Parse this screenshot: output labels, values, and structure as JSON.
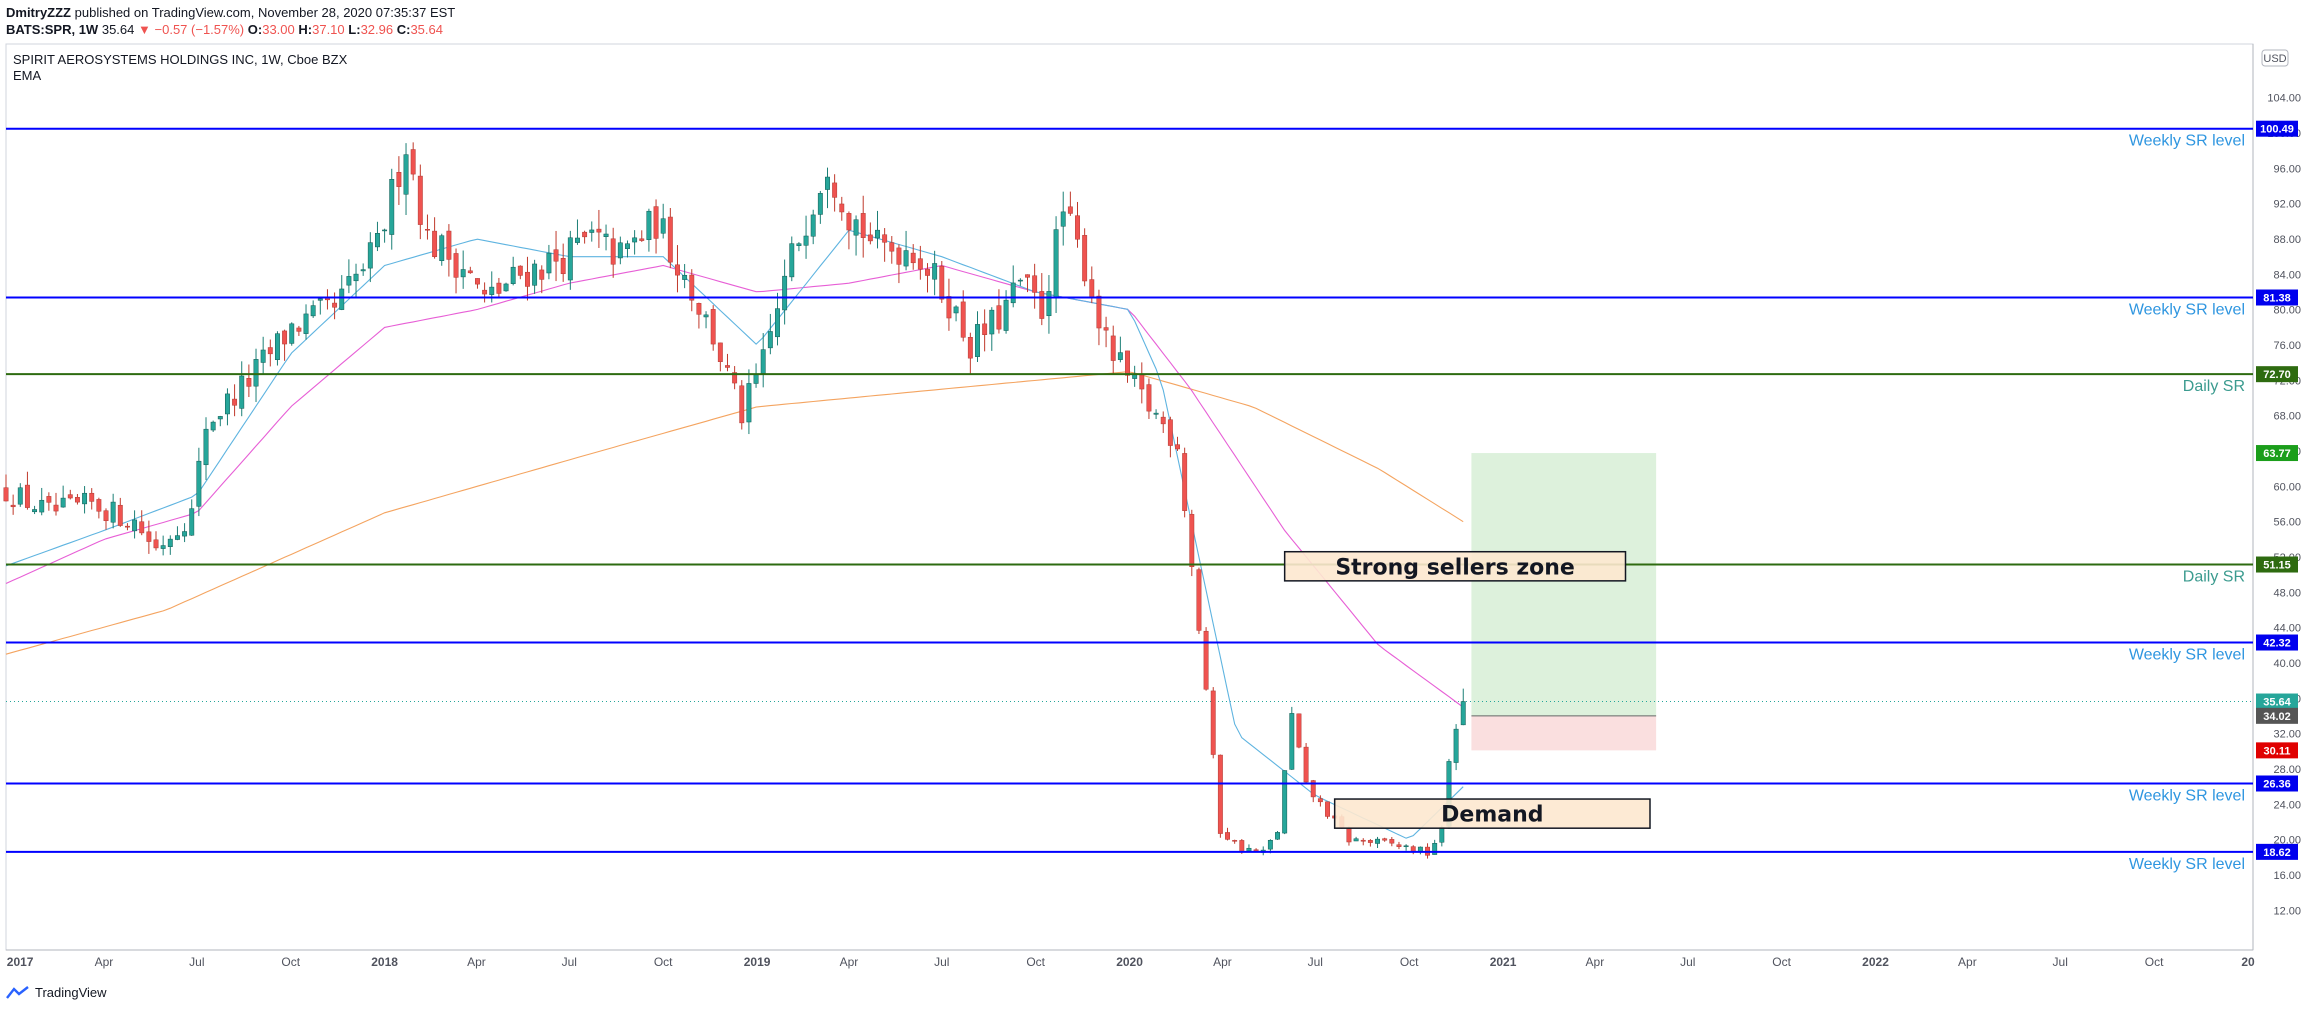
{
  "header": {
    "author": "DmitryZZZ",
    "published": "published on TradingView.com, November 28, 2020 07:35:37 EST",
    "symbol": "BATS:SPR, 1W",
    "last": "35.64",
    "change": "−0.57 (−1.57%)",
    "o_label": "O:",
    "o_value": "33.00",
    "h_label": "H:",
    "h_value": "37.10",
    "l_label": "L:",
    "l_value": "32.96",
    "c_label": "C:",
    "c_value": "35.64"
  },
  "legend": {
    "title": "SPIRIT AEROSYSTEMS HOLDINGS INC, 1W, Cboe BZX",
    "indicator": "EMA"
  },
  "currency": "USD",
  "footer": {
    "brand": "TradingView"
  },
  "colors": {
    "up": "#26a69a",
    "down": "#ef5350",
    "wick": "#131722",
    "weekly_line": "#0000ff",
    "daily_line": "#2e6b10",
    "ema_fast": "#5fb4e0",
    "ema_mid": "#e75fd6",
    "ema_slow": "#f4a460"
  },
  "chart_data": {
    "type": "candlestick",
    "interval": "1W",
    "ylim": [
      10,
      108
    ],
    "y_ticks": [
      "12.00",
      "16.00",
      "20.00",
      "24.00",
      "28.00",
      "32.00",
      "36.00",
      "40.00",
      "44.00",
      "48.00",
      "52.00",
      "56.00",
      "60.00",
      "64.00",
      "68.00",
      "72.00",
      "76.00",
      "80.00",
      "84.00",
      "88.00",
      "92.00",
      "96.00",
      "100.00",
      "104.00"
    ],
    "x_ticks": [
      {
        "label": "2017",
        "date": "2017-01-01"
      },
      {
        "label": "Apr",
        "date": "2017-04-01"
      },
      {
        "label": "Jul",
        "date": "2017-07-01"
      },
      {
        "label": "Oct",
        "date": "2017-10-01"
      },
      {
        "label": "2018",
        "date": "2018-01-01"
      },
      {
        "label": "Apr",
        "date": "2018-04-01"
      },
      {
        "label": "Jul",
        "date": "2018-07-01"
      },
      {
        "label": "Oct",
        "date": "2018-10-01"
      },
      {
        "label": "2019",
        "date": "2019-01-01"
      },
      {
        "label": "Apr",
        "date": "2019-04-01"
      },
      {
        "label": "Jul",
        "date": "2019-07-01"
      },
      {
        "label": "Oct",
        "date": "2019-10-01"
      },
      {
        "label": "2020",
        "date": "2020-01-01"
      },
      {
        "label": "Apr",
        "date": "2020-04-01"
      },
      {
        "label": "Jul",
        "date": "2020-07-01"
      },
      {
        "label": "Oct",
        "date": "2020-10-01"
      },
      {
        "label": "2021",
        "date": "2021-01-01"
      },
      {
        "label": "Apr",
        "date": "2021-04-01"
      },
      {
        "label": "Jul",
        "date": "2021-07-01"
      },
      {
        "label": "Oct",
        "date": "2021-10-01"
      },
      {
        "label": "2022",
        "date": "2022-01-01"
      },
      {
        "label": "Apr",
        "date": "2022-04-01"
      },
      {
        "label": "Jul",
        "date": "2022-07-01"
      },
      {
        "label": "Oct",
        "date": "2022-10-01"
      },
      {
        "label": "20",
        "date": "2023-01-01"
      }
    ],
    "price_anchors": [
      [
        "2016-12-26",
        59.5
      ],
      [
        "2017-02-06",
        57
      ],
      [
        "2017-03-20",
        58
      ],
      [
        "2017-05-01",
        56
      ],
      [
        "2017-05-22",
        53
      ],
      [
        "2017-06-26",
        57
      ],
      [
        "2017-07-10",
        67
      ],
      [
        "2017-08-21",
        72
      ],
      [
        "2017-10-02",
        78
      ],
      [
        "2017-11-13",
        80
      ],
      [
        "2017-12-25",
        87
      ],
      [
        "2018-01-22",
        99
      ],
      [
        "2018-02-12",
        88
      ],
      [
        "2018-03-19",
        85
      ],
      [
        "2018-04-09",
        81
      ],
      [
        "2018-05-14",
        84
      ],
      [
        "2018-06-25",
        86
      ],
      [
        "2018-07-23",
        88
      ],
      [
        "2018-08-20",
        86
      ],
      [
        "2018-09-24",
        90
      ],
      [
        "2018-10-22",
        84
      ],
      [
        "2018-11-19",
        77
      ],
      [
        "2018-12-17",
        68
      ],
      [
        "2019-01-07",
        74
      ],
      [
        "2019-02-04",
        86
      ],
      [
        "2019-03-11",
        97
      ],
      [
        "2019-04-01",
        91
      ],
      [
        "2019-04-29",
        87
      ],
      [
        "2019-06-03",
        87
      ],
      [
        "2019-07-08",
        81
      ],
      [
        "2019-07-29",
        76
      ],
      [
        "2019-08-26",
        79
      ],
      [
        "2019-09-16",
        83
      ],
      [
        "2019-10-07",
        80
      ],
      [
        "2019-10-28",
        91
      ],
      [
        "2019-11-18",
        85
      ],
      [
        "2019-12-09",
        76
      ],
      [
        "2020-01-06",
        71
      ],
      [
        "2020-01-27",
        68
      ],
      [
        "2020-02-17",
        65
      ],
      [
        "2020-03-02",
        51
      ],
      [
        "2020-03-16",
        37
      ],
      [
        "2020-03-30",
        21
      ],
      [
        "2020-04-20",
        19
      ],
      [
        "2020-05-11",
        18.5
      ],
      [
        "2020-05-25",
        21
      ],
      [
        "2020-06-08",
        34
      ],
      [
        "2020-06-22",
        26
      ],
      [
        "2020-07-13",
        23
      ],
      [
        "2020-08-03",
        20
      ],
      [
        "2020-09-14",
        19.5
      ],
      [
        "2020-10-19",
        18.5
      ],
      [
        "2020-11-02",
        21
      ],
      [
        "2020-11-09",
        29
      ],
      [
        "2020-11-16",
        33
      ],
      [
        "2020-11-23",
        35.64
      ]
    ],
    "last_candle": {
      "date": "2020-11-23",
      "open": 33.0,
      "high": 37.1,
      "low": 32.96,
      "close": 35.64
    },
    "ema_fast_anchors": [
      [
        "2016-12-26",
        51
      ],
      [
        "2017-04-01",
        55
      ],
      [
        "2017-07-01",
        59
      ],
      [
        "2017-10-01",
        75
      ],
      [
        "2018-01-01",
        85
      ],
      [
        "2018-04-01",
        88
      ],
      [
        "2018-07-01",
        86
      ],
      [
        "2018-10-01",
        86
      ],
      [
        "2019-01-01",
        76
      ],
      [
        "2019-04-01",
        89
      ],
      [
        "2019-07-01",
        86
      ],
      [
        "2019-10-01",
        82
      ],
      [
        "2020-01-01",
        80
      ],
      [
        "2020-02-01",
        72
      ],
      [
        "2020-04-15",
        32
      ],
      [
        "2020-07-01",
        25
      ],
      [
        "2020-10-01",
        20
      ],
      [
        "2020-11-23",
        26
      ]
    ],
    "ema_mid_anchors": [
      [
        "2016-12-26",
        49
      ],
      [
        "2017-04-01",
        54
      ],
      [
        "2017-07-01",
        57
      ],
      [
        "2017-10-01",
        69
      ],
      [
        "2018-01-01",
        78
      ],
      [
        "2018-04-01",
        80
      ],
      [
        "2018-07-01",
        83
      ],
      [
        "2018-10-01",
        85
      ],
      [
        "2019-01-01",
        82
      ],
      [
        "2019-04-01",
        83
      ],
      [
        "2019-07-01",
        85
      ],
      [
        "2019-10-01",
        82
      ],
      [
        "2020-01-01",
        80
      ],
      [
        "2020-03-01",
        71
      ],
      [
        "2020-06-01",
        55
      ],
      [
        "2020-09-01",
        42
      ],
      [
        "2020-11-23",
        35
      ]
    ],
    "ema_slow_anchors": [
      [
        "2016-12-26",
        41
      ],
      [
        "2017-06-01",
        46
      ],
      [
        "2018-01-01",
        57
      ],
      [
        "2018-07-01",
        63
      ],
      [
        "2019-01-01",
        69
      ],
      [
        "2019-07-01",
        71
      ],
      [
        "2020-01-01",
        73
      ],
      [
        "2020-05-01",
        69
      ],
      [
        "2020-09-01",
        62
      ],
      [
        "2020-11-23",
        56
      ]
    ],
    "levels": [
      {
        "price": 100.49,
        "kind": "weekly",
        "label": "Weekly SR level",
        "tag": "100.49"
      },
      {
        "price": 81.38,
        "kind": "weekly",
        "label": "Weekly SR level",
        "tag": "81.38"
      },
      {
        "price": 72.7,
        "kind": "daily",
        "label": "Daily SR",
        "tag": "72.70"
      },
      {
        "price": 51.15,
        "kind": "daily",
        "label": "Daily SR",
        "tag": "51.15"
      },
      {
        "price": 42.32,
        "kind": "weekly",
        "label": "Weekly SR level",
        "tag": "42.32"
      },
      {
        "price": 26.36,
        "kind": "weekly",
        "label": "Weekly SR level",
        "tag": "26.36"
      },
      {
        "price": 18.62,
        "kind": "weekly",
        "label": "Weekly SR level",
        "tag": "18.62"
      }
    ],
    "position": {
      "start": "2020-12-01",
      "end": "2021-05-31",
      "entry": 34.02,
      "target": 63.77,
      "stop": 30.11
    },
    "price_tags": [
      {
        "value": "63.77",
        "price": 63.77,
        "color": "#1b9e1b"
      },
      {
        "value": "35.64",
        "price": 35.64,
        "color": "#26a69a"
      },
      {
        "value": "34.02",
        "price": 34.02,
        "color": "#555555"
      },
      {
        "value": "30.11",
        "price": 30.11,
        "color": "#e00000"
      }
    ],
    "zones": [
      {
        "name": "strong-sellers-zone",
        "label": "Strong sellers zone",
        "start": "2020-06-01",
        "end": "2021-05-01",
        "top": 52.6,
        "bottom": 49.3
      },
      {
        "name": "demand-zone",
        "label": "Demand",
        "start": "2020-07-20",
        "end": "2021-05-25",
        "top": 24.6,
        "bottom": 21.3
      }
    ]
  }
}
